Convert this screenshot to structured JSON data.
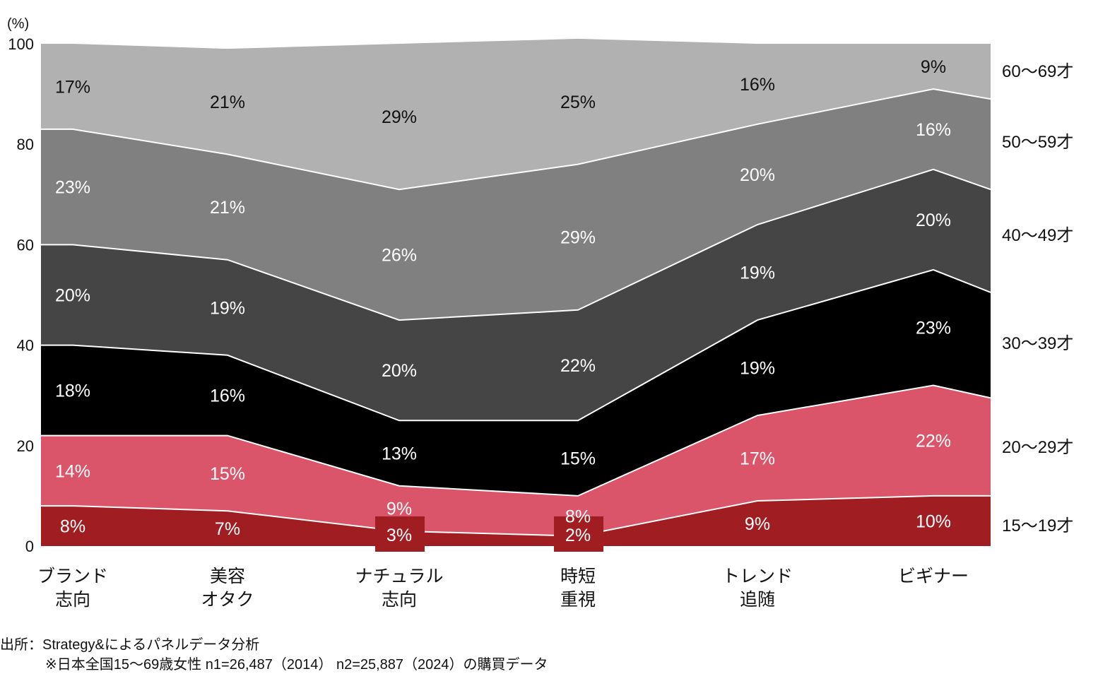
{
  "chart_data": {
    "type": "area",
    "y_unit_label": "(%)",
    "ylim": [
      0,
      100
    ],
    "yticks": [
      0,
      20,
      40,
      60,
      80,
      100
    ],
    "grid": false,
    "legend_position": "right",
    "categories": [
      [
        "ブランド",
        "志向"
      ],
      [
        "美容",
        "オタク"
      ],
      [
        "ナチュラル",
        "志向"
      ],
      [
        "時短",
        "重視"
      ],
      [
        "トレンド",
        "追随"
      ],
      [
        "ビギナー"
      ]
    ],
    "series": [
      {
        "name": "15〜19才",
        "color": "#a01d22",
        "label_color": "#ffffff",
        "values": [
          8,
          7,
          3,
          2,
          9,
          10
        ],
        "labels": [
          "8%",
          "7%",
          "3%",
          "2%",
          "9%",
          "10%"
        ],
        "end_value": 10
      },
      {
        "name": "20〜29才",
        "color": "#da546a",
        "label_color": "#ffffff",
        "values": [
          14,
          15,
          9,
          8,
          17,
          22
        ],
        "labels": [
          "14%",
          "15%",
          "9%",
          "8%",
          "17%",
          "22%"
        ],
        "end_value": 19.5
      },
      {
        "name": "30〜39才",
        "color": "#000000",
        "label_color": "#ffffff",
        "values": [
          18,
          16,
          13,
          15,
          19,
          23
        ],
        "labels": [
          "18%",
          "16%",
          "13%",
          "15%",
          "19%",
          "23%"
        ],
        "end_value": 21
      },
      {
        "name": "40〜49才",
        "color": "#454545",
        "label_color": "#ffffff",
        "values": [
          20,
          19,
          20,
          22,
          19,
          20
        ],
        "labels": [
          "20%",
          "19%",
          "20%",
          "22%",
          "19%",
          "20%"
        ],
        "end_value": 20.5
      },
      {
        "name": "50〜59才",
        "color": "#808080",
        "label_color": "#ffffff",
        "values": [
          23,
          21,
          26,
          29,
          20,
          16
        ],
        "labels": [
          "23%",
          "21%",
          "26%",
          "29%",
          "20%",
          "16%"
        ],
        "end_value": 18
      },
      {
        "name": "60〜69才",
        "color": "#b1b1b1",
        "label_color": "#111111",
        "values": [
          17,
          21,
          29,
          25,
          16,
          9
        ],
        "labels": [
          "17%",
          "21%",
          "29%",
          "25%",
          "16%",
          "9%"
        ],
        "end_value": 11
      }
    ],
    "boxed_labels": [
      "3%",
      "2%"
    ]
  },
  "source": {
    "line1": "出所：Strategy&によるパネルデータ分析",
    "line2": "※日本全国15〜69歳女性 n1=26,487（2014） n2=25,887（2024）の購買データ"
  }
}
